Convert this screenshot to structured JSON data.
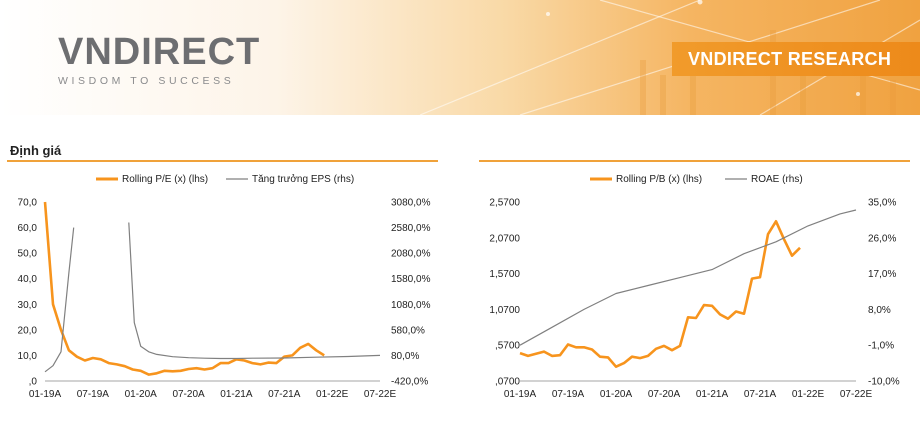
{
  "header": {
    "logo_text": "VNDIRECT",
    "logo_tagline": "WISDOM TO SUCCESS",
    "research_title": "VNDIRECT RESEARCH"
  },
  "section": {
    "title": "Định giá"
  },
  "colors": {
    "accent": "#F7941D",
    "secondary": "#808080",
    "rule": "#F0A23A"
  },
  "chart_data": [
    {
      "type": "line",
      "legend": [
        "Rolling P/E (x) (lhs)",
        "Tăng trưởng EPS (rhs)"
      ],
      "x_ticks": [
        "01-19A",
        "07-19A",
        "01-20A",
        "07-20A",
        "01-21A",
        "07-21A",
        "01-22E",
        "07-22E"
      ],
      "y_left_ticks": [
        "70,0",
        "60,0",
        "50,0",
        "40,0",
        "30,0",
        "20,0",
        "10,0",
        ",0"
      ],
      "y_right_ticks": [
        "3080,0%",
        "2580,0%",
        "2080,0%",
        "1580,0%",
        "1080,0%",
        "580,0%",
        "80,0%",
        "-420,0%"
      ],
      "ylim_left": [
        0,
        70
      ],
      "ylim_right": [
        -420,
        3080
      ],
      "x_range": [
        0,
        42
      ],
      "series": [
        {
          "name": "Rolling P/E (x) (lhs)",
          "axis": "left",
          "color": "#F7941D",
          "x": [
            0,
            1,
            2,
            3,
            4,
            5,
            6,
            7,
            8,
            9,
            10,
            11,
            12,
            13,
            14,
            15,
            16,
            17,
            18,
            19,
            20,
            21,
            22,
            23,
            24,
            25,
            26,
            27,
            28,
            29,
            30,
            31,
            32,
            33,
            34,
            35
          ],
          "values": [
            70,
            30,
            20,
            12,
            9.5,
            8,
            9,
            8.5,
            7,
            6.5,
            5.8,
            4.5,
            4,
            2.5,
            3,
            4,
            3.8,
            4,
            4.7,
            5,
            4.5,
            5,
            7,
            7,
            8.5,
            8,
            7,
            6.5,
            7.2,
            7,
            9.5,
            10,
            13,
            14.5,
            12,
            10
          ]
        },
        {
          "name": "Tăng trưởng EPS (rhs)",
          "axis": "right",
          "color": "#808080",
          "x": [
            0,
            1,
            2,
            3,
            3.6,
            null,
            10.5,
            11.2,
            12,
            13,
            14,
            16,
            18,
            20,
            22,
            24,
            26,
            30,
            34,
            38,
            42
          ],
          "values": [
            -240,
            -120,
            150,
            1700,
            2580,
            null,
            2680,
            720,
            260,
            150,
            100,
            55,
            35,
            25,
            20,
            20,
            25,
            30,
            45,
            60,
            80
          ]
        }
      ]
    },
    {
      "type": "line",
      "legend": [
        "Rolling P/B (x) (lhs)",
        "ROAE (rhs)"
      ],
      "x_ticks": [
        "01-19A",
        "07-19A",
        "01-20A",
        "07-20A",
        "01-21A",
        "07-21A",
        "01-22E",
        "07-22E"
      ],
      "y_left_ticks": [
        "2,5700",
        "2,0700",
        "1,5700",
        "1,0700",
        ",5700",
        ",0700"
      ],
      "y_right_ticks": [
        "35,0%",
        "26,0%",
        "17,0%",
        "8,0%",
        "-1,0%",
        "-10,0%"
      ],
      "ylim_left": [
        0.07,
        2.57
      ],
      "ylim_right": [
        -10,
        35
      ],
      "x_range": [
        0,
        42
      ],
      "series": [
        {
          "name": "Rolling P/B (x) (lhs)",
          "axis": "left",
          "color": "#F7941D",
          "x": [
            0,
            1,
            2,
            3,
            4,
            5,
            6,
            7,
            8,
            9,
            10,
            11,
            12,
            13,
            14,
            15,
            16,
            17,
            18,
            19,
            20,
            21,
            22,
            23,
            24,
            25,
            26,
            27,
            28,
            29,
            30,
            31,
            32,
            33,
            34,
            35
          ],
          "values": [
            0.46,
            0.42,
            0.45,
            0.48,
            0.42,
            0.43,
            0.58,
            0.54,
            0.54,
            0.51,
            0.41,
            0.4,
            0.27,
            0.32,
            0.41,
            0.39,
            0.42,
            0.52,
            0.56,
            0.5,
            0.56,
            0.96,
            0.95,
            1.13,
            1.12,
            1.0,
            0.94,
            1.04,
            1.01,
            1.5,
            1.52,
            2.12,
            2.3,
            2.05,
            1.82,
            1.93
          ]
        },
        {
          "name": "ROAE (rhs)",
          "axis": "right",
          "color": "#808080",
          "x": [
            0,
            4,
            8,
            12,
            16,
            20,
            24,
            28,
            32,
            36,
            40,
            42
          ],
          "values": [
            -1,
            3.5,
            8,
            12,
            14,
            16,
            18,
            22,
            25,
            29,
            32,
            33
          ]
        }
      ]
    }
  ]
}
